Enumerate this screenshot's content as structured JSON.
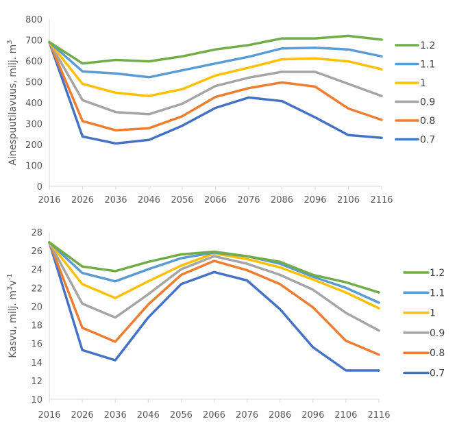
{
  "chart_data": [
    {
      "type": "line",
      "title": "",
      "xlabel": "",
      "ylabel": "Ainespuutilavuus, milj. m",
      "ylabel_sup": "3",
      "categories": [
        "2016",
        "2026",
        "2036",
        "2046",
        "2056",
        "2066",
        "2076",
        "2086",
        "2096",
        "2106",
        "2116"
      ],
      "ylim": [
        0,
        800
      ],
      "yticks": [
        0,
        100,
        200,
        300,
        400,
        500,
        600,
        700,
        800
      ],
      "grid": false,
      "legend_position": "right",
      "series": [
        {
          "name": "1.2",
          "color": "#70AD47",
          "values": [
            690,
            588,
            605,
            598,
            622,
            655,
            676,
            708,
            708,
            720,
            702
          ]
        },
        {
          "name": "1.1",
          "color": "#5B9BD5",
          "values": [
            690,
            550,
            540,
            522,
            555,
            588,
            620,
            660,
            663,
            655,
            622
          ]
        },
        {
          "name": "1",
          "color": "#FFC000",
          "values": [
            690,
            490,
            448,
            432,
            465,
            530,
            568,
            608,
            612,
            598,
            560
          ]
        },
        {
          "name": "0.9",
          "color": "#A5A5A5",
          "values": [
            690,
            412,
            355,
            345,
            395,
            480,
            520,
            548,
            548,
            490,
            432
          ]
        },
        {
          "name": "0.8",
          "color": "#ED7D31",
          "values": [
            690,
            312,
            268,
            278,
            335,
            428,
            470,
            497,
            477,
            372,
            318
          ]
        },
        {
          "name": "0.7",
          "color": "#4472C4",
          "values": [
            690,
            238,
            205,
            222,
            290,
            375,
            425,
            408,
            330,
            245,
            232
          ]
        }
      ]
    },
    {
      "type": "line",
      "title": "",
      "xlabel": "",
      "ylabel": "Kasvu, milj. m",
      "ylabel_sup": "3",
      "ylabel_mid": "v",
      "ylabel_sup2": "-1",
      "categories": [
        "2016",
        "2026",
        "2036",
        "2046",
        "2056",
        "2066",
        "2076",
        "2086",
        "2096",
        "2106",
        "2116"
      ],
      "ylim": [
        10,
        28
      ],
      "yticks": [
        10,
        12,
        14,
        16,
        18,
        20,
        22,
        24,
        26,
        28
      ],
      "grid": false,
      "legend_position": "right",
      "series": [
        {
          "name": "1.2",
          "color": "#70AD47",
          "values": [
            26.9,
            24.3,
            23.8,
            24.8,
            25.6,
            25.9,
            25.4,
            24.8,
            23.4,
            22.6,
            21.5
          ]
        },
        {
          "name": "1.1",
          "color": "#5B9BD5",
          "values": [
            26.9,
            23.6,
            22.7,
            24.0,
            25.2,
            25.8,
            25.4,
            24.6,
            23.2,
            22.0,
            20.4
          ]
        },
        {
          "name": "1",
          "color": "#FFC000",
          "values": [
            26.9,
            22.4,
            20.9,
            22.7,
            24.4,
            25.7,
            25.1,
            24.2,
            22.9,
            21.5,
            19.8
          ]
        },
        {
          "name": "0.9",
          "color": "#A5A5A5",
          "values": [
            26.9,
            20.3,
            18.8,
            21.3,
            24.0,
            25.4,
            24.6,
            23.4,
            21.8,
            19.3,
            17.4
          ]
        },
        {
          "name": "0.8",
          "color": "#ED7D31",
          "values": [
            26.9,
            17.7,
            16.2,
            20.2,
            23.4,
            24.9,
            23.9,
            22.4,
            19.9,
            16.3,
            14.8
          ]
        },
        {
          "name": "0.7",
          "color": "#4472C4",
          "values": [
            26.9,
            15.3,
            14.2,
            18.8,
            22.4,
            23.7,
            22.8,
            19.7,
            15.6,
            13.1,
            13.1
          ]
        }
      ]
    }
  ]
}
